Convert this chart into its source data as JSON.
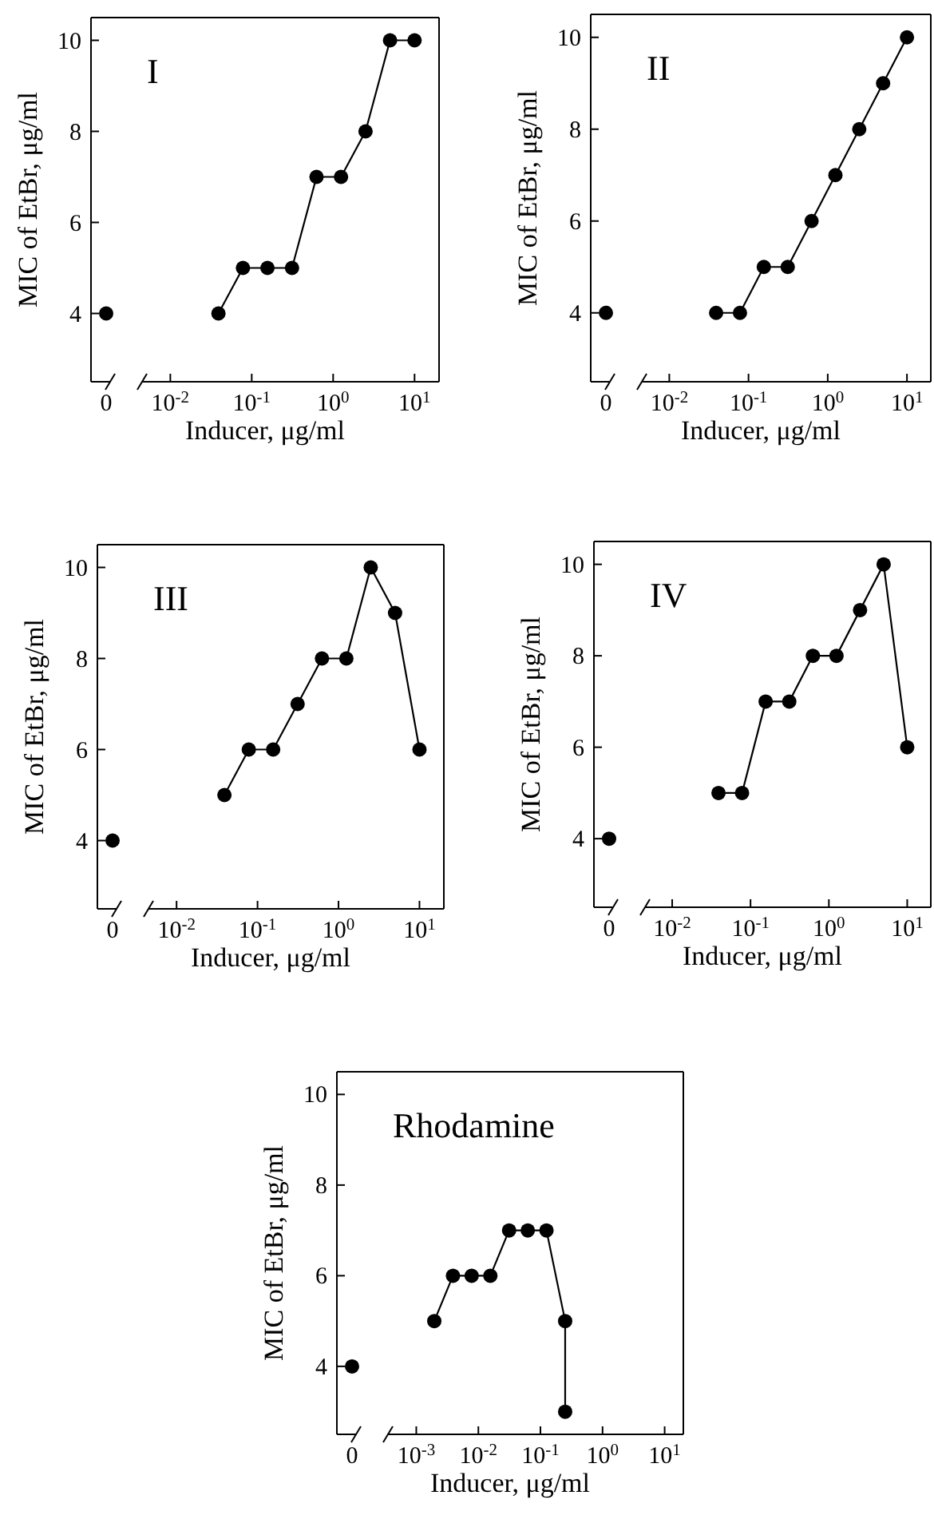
{
  "chart_data": [
    {
      "type": "scatter",
      "categories": [
        "0"
      ],
      "values": [
        4
      ],
      "color": "#000000",
      "marker": "circle",
      "ylim": [
        2.5,
        10.5
      ],
      "yticks": [
        4,
        6,
        8,
        10
      ],
      "ylabel": "MIC of EtBr, μg/ml"
    },
    {
      "type": "line",
      "title": "I",
      "xlabel": "Inducer, μg/ml",
      "x": [
        0.039,
        0.078,
        0.156,
        0.3125,
        0.625,
        1.25,
        2.5,
        5,
        10
      ],
      "values": [
        4,
        5,
        5,
        5,
        7,
        7,
        8,
        10,
        10
      ],
      "color": "#000000",
      "marker": "circle",
      "log": "x",
      "xlim": [
        0.0045,
        20
      ],
      "xticks": [
        {
          "value": 0.01,
          "label": "10$^{-2}$"
        },
        {
          "value": 0.1,
          "label": "10$^{-1}$"
        },
        {
          "value": 1,
          "label": "10$^{0}$"
        },
        {
          "value": 10,
          "label": "10$^{1}$"
        }
      ],
      "ylim": [
        2.5,
        10.5
      ],
      "tick_labels": "x"
    },
    {
      "type": "scatter",
      "categories": [
        "0"
      ],
      "values": [
        4
      ],
      "color": "#000000",
      "marker": "circle",
      "ylim": [
        2.5,
        10.5
      ],
      "yticks": [
        4,
        6,
        8,
        10
      ],
      "ylabel": "MIC of EtBr, μg/ml"
    },
    {
      "type": "line",
      "title": "II",
      "xlabel": "Inducer, μg/ml",
      "x": [
        0.039,
        0.078,
        0.156,
        0.3125,
        0.625,
        1.25,
        2.5,
        5,
        10
      ],
      "values": [
        4,
        4,
        5,
        5,
        6,
        7,
        8,
        9,
        10
      ],
      "color": "#000000",
      "marker": "circle",
      "log": "x",
      "xlim": [
        0.0045,
        20
      ],
      "xticks": [
        {
          "value": 0.01,
          "label": "10$^{-2}$"
        },
        {
          "value": 0.1,
          "label": "10$^{-1}$"
        },
        {
          "value": 1,
          "label": "10$^{0}$"
        },
        {
          "value": 10,
          "label": "10$^{1}$"
        }
      ],
      "ylim": [
        2.5,
        10.5
      ],
      "tick_labels": "x"
    },
    {
      "type": "scatter",
      "categories": [
        "0"
      ],
      "values": [
        4
      ],
      "color": "#000000",
      "marker": "circle",
      "ylim": [
        2.5,
        10.5
      ],
      "yticks": [
        4,
        6,
        8,
        10
      ],
      "ylabel": "MIC of EtBr, μg/ml"
    },
    {
      "type": "line",
      "title": "III",
      "xlabel": "Inducer, μg/ml",
      "x": [
        0.039,
        0.078,
        0.156,
        0.3125,
        0.625,
        1.25,
        2.5,
        5,
        10
      ],
      "values": [
        5,
        6,
        6,
        7,
        8,
        8,
        10,
        9,
        6
      ],
      "color": "#000000",
      "marker": "circle",
      "log": "x",
      "xlim": [
        0.0045,
        20
      ],
      "xticks": [
        {
          "value": 0.01,
          "label": "10$^{-2}$"
        },
        {
          "value": 0.1,
          "label": "10$^{-1}$"
        },
        {
          "value": 1,
          "label": "10$^{0}$"
        },
        {
          "value": 10,
          "label": "10$^{1}$"
        }
      ],
      "ylim": [
        2.5,
        10.5
      ],
      "tick_labels": "x"
    },
    {
      "type": "scatter",
      "categories": [
        "0"
      ],
      "values": [
        4
      ],
      "color": "#000000",
      "marker": "circle",
      "ylim": [
        2.5,
        10.5
      ],
      "yticks": [
        4,
        6,
        8,
        10
      ],
      "ylabel": "MIC of EtBr, μg/ml"
    },
    {
      "type": "line",
      "title": "IV",
      "xlabel": "Inducer, μg/ml",
      "x": [
        0.039,
        0.078,
        0.156,
        0.3125,
        0.625,
        1.25,
        2.5,
        5,
        10
      ],
      "values": [
        5,
        5,
        7,
        7,
        8,
        8,
        9,
        10,
        6
      ],
      "color": "#000000",
      "marker": "circle",
      "log": "x",
      "xlim": [
        0.0045,
        20
      ],
      "xticks": [
        {
          "value": 0.01,
          "label": "10$^{-2}$"
        },
        {
          "value": 0.1,
          "label": "10$^{-1}$"
        },
        {
          "value": 1,
          "label": "10$^{0}$"
        },
        {
          "value": 10,
          "label": "10$^{1}$"
        }
      ],
      "ylim": [
        2.5,
        10.5
      ],
      "tick_labels": "x"
    },
    {
      "type": "scatter",
      "categories": [
        "0"
      ],
      "values": [
        4
      ],
      "color": "#000000",
      "marker": "circle",
      "ylim": [
        2.5,
        10.5
      ],
      "yticks": [
        4,
        6,
        8,
        10
      ],
      "ylabel": "MIC of EtBr, μg/ml"
    },
    {
      "type": "line",
      "title": "Rhodamine",
      "xlabel": "Inducer, μg/ml",
      "x": [
        0.00195,
        0.0039,
        0.0078,
        0.0156,
        0.03125,
        0.0625,
        0.125,
        0.25,
        0.25
      ],
      "values": [
        5,
        6,
        6,
        6,
        7,
        7,
        7,
        5,
        3
      ],
      "color": "#000000",
      "marker": "circle",
      "log": "x",
      "xlim": [
        0.00035,
        20
      ],
      "xticks": [
        {
          "value": 0.001,
          "label": "10$^{-3}$"
        },
        {
          "value": 0.01,
          "label": "10$^{-2}$"
        },
        {
          "value": 0.1,
          "label": "10$^{-1}$"
        },
        {
          "value": 1,
          "label": "10$^{0}$"
        },
        {
          "value": 10,
          "label": "10$^{1}$"
        }
      ],
      "ylim": [
        2.5,
        10.5
      ],
      "tick_labels": "x"
    }
  ]
}
